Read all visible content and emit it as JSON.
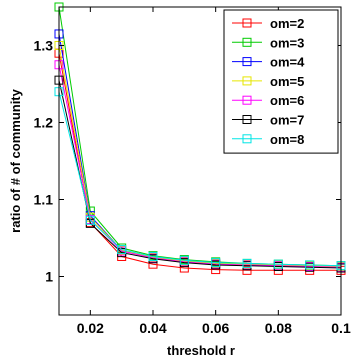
{
  "chart_data": {
    "type": "line",
    "title": "",
    "xlabel": "threshold r",
    "ylabel": "ratio of # of community",
    "x": [
      0.01,
      0.02,
      0.03,
      0.04,
      0.05,
      0.06,
      0.07,
      0.08,
      0.09,
      0.1
    ],
    "xlim": [
      0.01,
      0.1
    ],
    "ylim": [
      0.95,
      1.35
    ],
    "x_ticks": [
      0.02,
      0.04,
      0.06,
      0.08,
      0.1
    ],
    "x_tick_labels": [
      "0.02",
      "0.04",
      "0.06",
      "0.08",
      "0.1"
    ],
    "y_ticks": [
      1,
      1.1,
      1.2,
      1.3
    ],
    "y_tick_labels": [
      "1",
      "1.1",
      "1.2",
      "1.3"
    ],
    "grid": false,
    "legend_position": "top-right",
    "marker": "square",
    "series": [
      {
        "name": "om=2",
        "color": "#ff0000",
        "values": [
          1.29,
          1.07,
          1.026,
          1.016,
          1.011,
          1.009,
          1.008,
          1.008,
          1.008,
          1.008
        ]
      },
      {
        "name": "om=3",
        "color": "#00cc00",
        "values": [
          1.35,
          1.085,
          1.037,
          1.027,
          1.022,
          1.019,
          1.017,
          1.016,
          1.015,
          1.014
        ]
      },
      {
        "name": "om=4",
        "color": "#0000ff",
        "values": [
          1.315,
          1.079,
          1.034,
          1.025,
          1.02,
          1.017,
          1.015,
          1.014,
          1.013,
          1.012
        ]
      },
      {
        "name": "om=5",
        "color": "#e6e600",
        "values": [
          1.3,
          1.077,
          1.034,
          1.025,
          1.02,
          1.017,
          1.016,
          1.015,
          1.014,
          1.013
        ]
      },
      {
        "name": "om=6",
        "color": "#ff00ff",
        "values": [
          1.275,
          1.074,
          1.033,
          1.024,
          1.019,
          1.016,
          1.015,
          1.014,
          1.013,
          1.012
        ]
      },
      {
        "name": "om=7",
        "color": "#000000",
        "values": [
          1.255,
          1.069,
          1.031,
          1.023,
          1.018,
          1.015,
          1.014,
          1.013,
          1.012,
          1.011
        ]
      },
      {
        "name": "om=8",
        "color": "#00e5e5",
        "values": [
          1.24,
          1.073,
          1.035,
          1.026,
          1.021,
          1.018,
          1.017,
          1.016,
          1.015,
          1.014
        ]
      }
    ]
  }
}
